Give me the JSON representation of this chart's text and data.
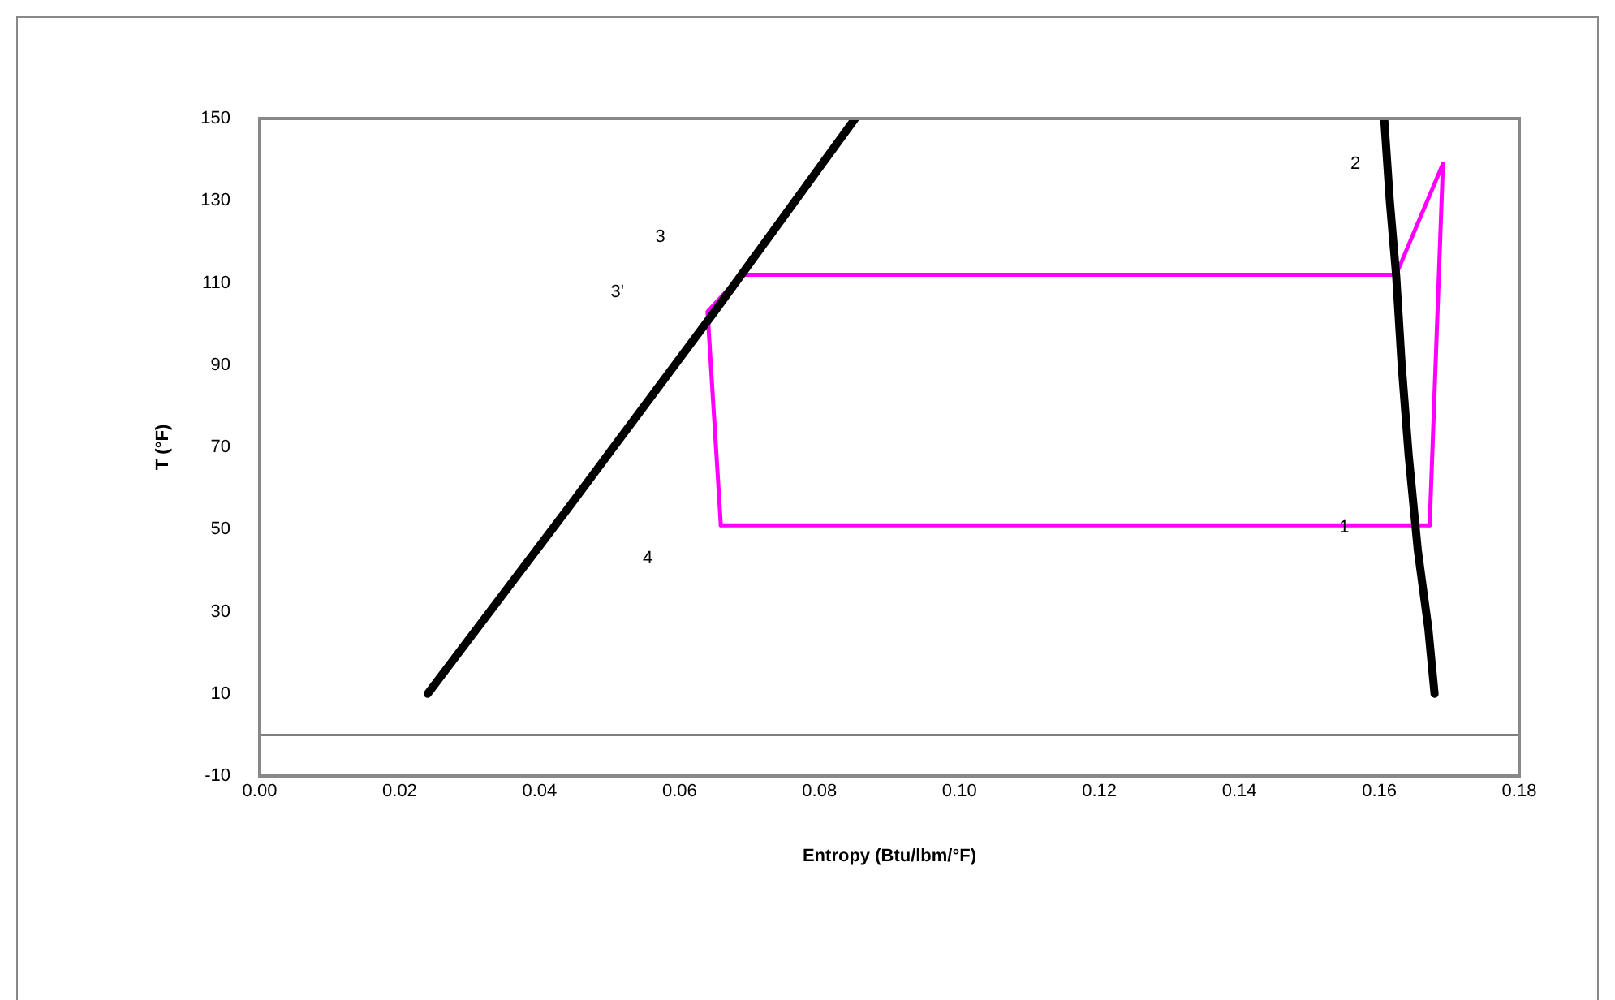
{
  "chart_data": {
    "type": "line",
    "xlabel": "Entropy (Btu/lbm/°F)",
    "ylabel": "T (°F)",
    "xlim": [
      0,
      0.18
    ],
    "xticks": [
      {
        "value": 0,
        "label": "0.00"
      },
      0.02,
      0.04,
      0.06,
      0.08,
      {
        "value": 0.1,
        "label": "0.10"
      },
      0.12,
      0.14,
      0.16,
      0.18
    ],
    "ylim": [
      -10,
      150
    ],
    "yticks": [
      -10,
      10,
      30,
      50,
      70,
      90,
      110,
      130,
      150
    ],
    "grid": false,
    "legend": false,
    "marker": "none",
    "line_style": "solid",
    "ref_lines": [
      {
        "axis": "y",
        "value": 0,
        "color": "#000000"
      }
    ],
    "series": [
      {
        "color": "#000000",
        "x": [
          0.024,
          0.044,
          0.065,
          0.0851
        ],
        "values": [
          10,
          55,
          103,
          150
        ]
      },
      {
        "color": "#000000",
        "x": [
          0.1607,
          0.1615,
          0.1624,
          0.1632,
          0.1642,
          0.1655,
          0.167,
          0.1679
        ],
        "values": [
          150,
          130,
          112,
          90,
          68,
          45,
          26,
          10
        ]
      },
      {
        "color": "#ff00ff",
        "x": [
          0.0659,
          0.064,
          0.0689,
          0.1624,
          0.1691,
          0.1672
        ],
        "values": [
          51,
          103,
          112,
          112,
          139,
          51
        ]
      },
      {
        "color": "#ff00ff",
        "x": [
          0.0659,
          0.1672
        ],
        "values": [
          51,
          51
        ]
      }
    ],
    "annotations": [
      "1",
      "2",
      "3",
      "3'",
      "4"
    ]
  }
}
